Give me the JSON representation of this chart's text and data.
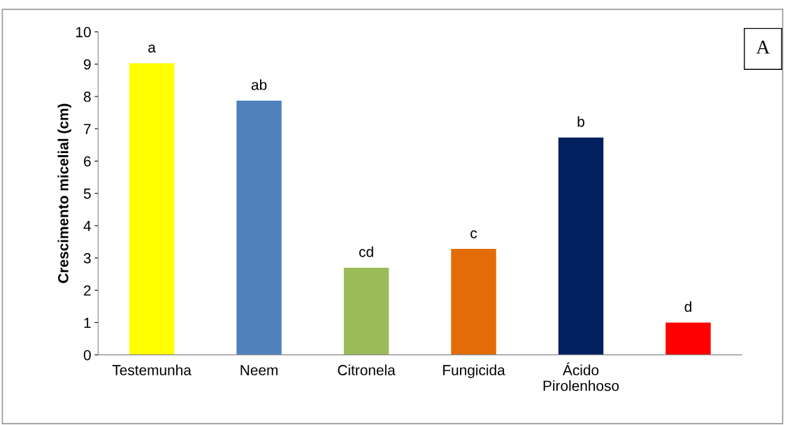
{
  "chart_data": {
    "type": "bar",
    "ylabel": "Crescimento micelial (cm)",
    "categories": [
      "Testemunha",
      "Neem",
      "Citronela",
      "Fungicida",
      "Ácido Pirolenhoso",
      null
    ],
    "values": [
      9.03,
      7.87,
      2.7,
      3.28,
      6.73,
      1.0
    ],
    "colors": [
      "#ffff00",
      "#4f81bd",
      "#9bbb59",
      "#e36c09",
      "#002060",
      "#ff0000"
    ],
    "value_labels": [
      "a",
      "ab",
      "cd",
      "c",
      "b",
      "d"
    ],
    "ylim": [
      0,
      10
    ],
    "yticks": [
      0,
      1,
      2,
      3,
      4,
      5,
      6,
      7,
      8,
      9,
      10
    ],
    "grid": false,
    "legend": false,
    "annotations": [
      "A"
    ]
  }
}
